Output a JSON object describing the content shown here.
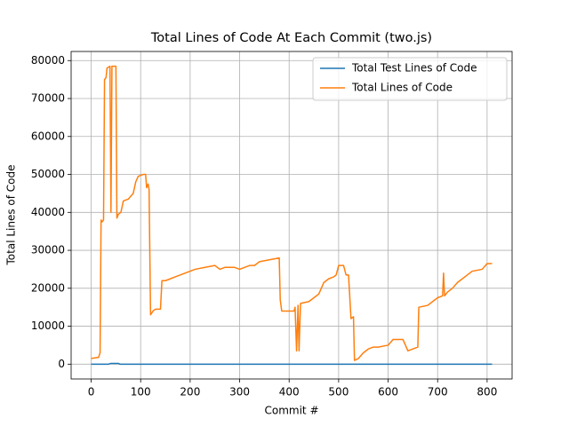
{
  "chart_data": {
    "type": "line",
    "title": "Total Lines of Code At Each Commit (two.js)",
    "xlabel": "Commit #",
    "ylabel": "Total Lines of Code",
    "xlim": [
      -40.5,
      850.5
    ],
    "ylim": [
      -3900,
      82400
    ],
    "xticks": [
      0,
      100,
      200,
      300,
      400,
      500,
      600,
      700,
      800
    ],
    "yticks": [
      0,
      10000,
      20000,
      30000,
      40000,
      50000,
      60000,
      70000,
      80000
    ],
    "grid": true,
    "legend": "upper-right",
    "series": [
      {
        "name": "Total Test Lines of Code",
        "color": "#1f77b4",
        "x": [
          0,
          35,
          40,
          55,
          58,
          810
        ],
        "values": [
          0,
          0,
          200,
          200,
          0,
          0
        ]
      },
      {
        "name": "Total Lines of Code",
        "color": "#ff7f0e",
        "x": [
          0,
          15,
          18,
          20,
          22,
          25,
          27,
          30,
          32,
          38,
          40,
          42,
          50,
          52,
          55,
          60,
          65,
          75,
          85,
          90,
          95,
          105,
          110,
          112,
          115,
          117,
          120,
          125,
          130,
          140,
          143,
          150,
          160,
          170,
          180,
          190,
          200,
          210,
          230,
          250,
          260,
          270,
          290,
          300,
          310,
          320,
          330,
          340,
          360,
          380,
          382,
          385,
          410,
          412,
          415,
          418,
          420,
          423,
          440,
          460,
          470,
          480,
          490,
          495,
          500,
          510,
          515,
          520,
          525,
          530,
          532,
          540,
          550,
          560,
          570,
          580,
          600,
          610,
          630,
          635,
          640,
          660,
          662,
          680,
          690,
          700,
          710,
          712,
          714,
          720,
          730,
          740,
          760,
          770,
          790,
          800,
          810
        ],
        "values": [
          1500,
          1800,
          3000,
          38000,
          37500,
          38000,
          75000,
          75500,
          78000,
          78500,
          40000,
          78500,
          78500,
          38500,
          39500,
          40000,
          43000,
          43500,
          45000,
          48000,
          49500,
          50000,
          50000,
          46500,
          47500,
          46000,
          13000,
          14000,
          14500,
          14500,
          22000,
          22000,
          22500,
          23000,
          23500,
          24000,
          24500,
          25000,
          25500,
          26000,
          25000,
          25500,
          25500,
          25000,
          25500,
          26000,
          26000,
          27000,
          27500,
          28000,
          17000,
          14000,
          14000,
          15000,
          3500,
          15500,
          3500,
          16000,
          16500,
          18500,
          21500,
          22500,
          23000,
          23500,
          26000,
          26000,
          23500,
          23500,
          12000,
          12500,
          1000,
          1500,
          3000,
          4000,
          4500,
          4500,
          5000,
          6500,
          6500,
          5000,
          3500,
          4500,
          15000,
          15500,
          16500,
          17500,
          18000,
          24000,
          18000,
          19000,
          20000,
          21500,
          23500,
          24500,
          25000,
          26500,
          26500
        ]
      }
    ]
  }
}
